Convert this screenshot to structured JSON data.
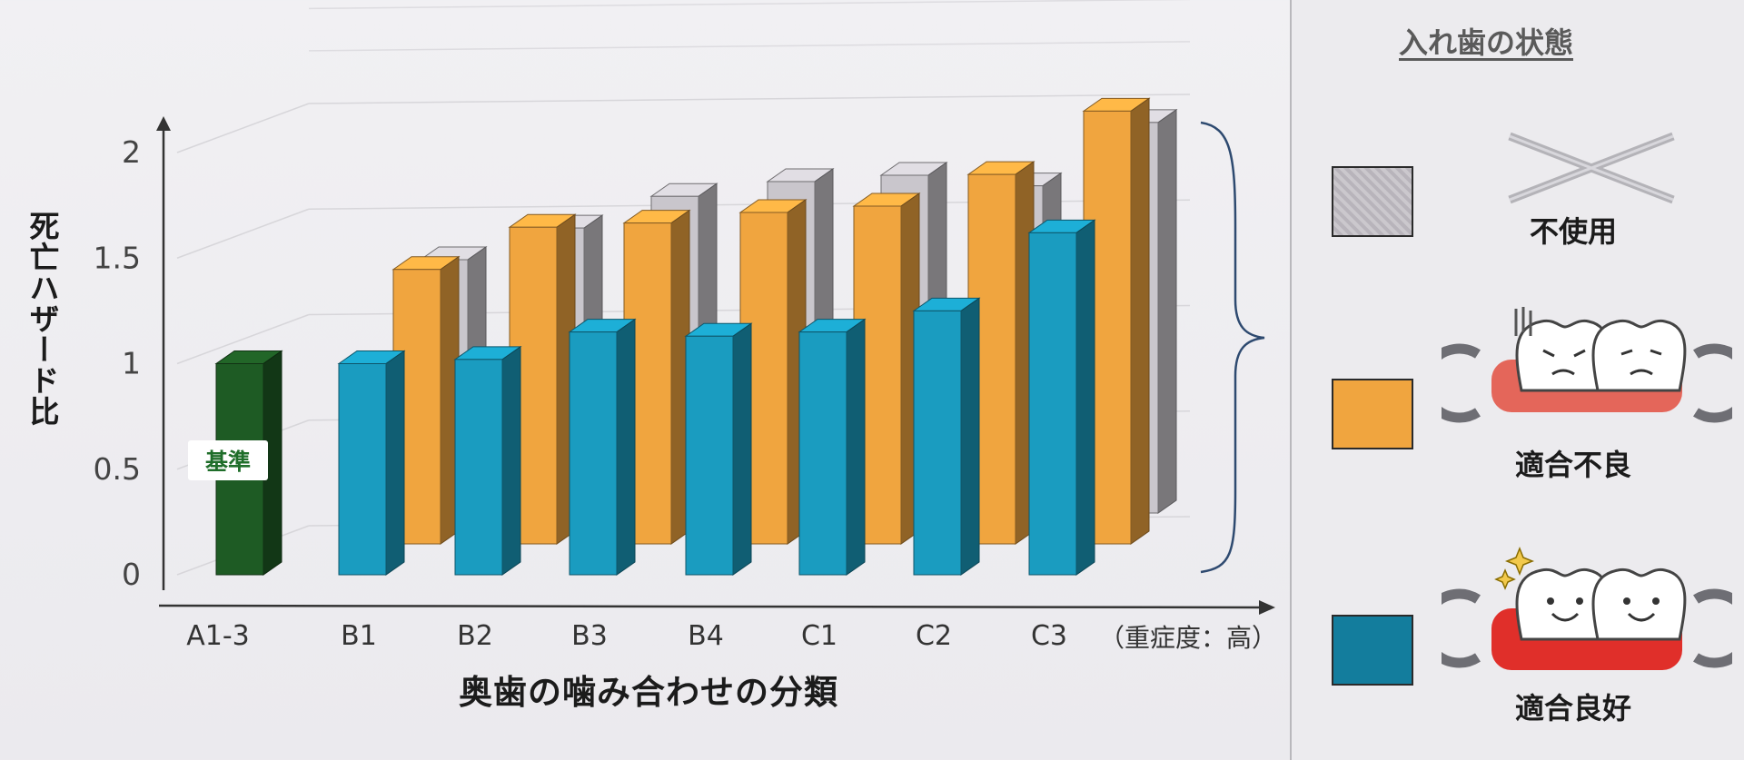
{
  "chart_data": {
    "type": "bar",
    "title": "",
    "xlabel": "奥歯の噛み合わせの分類",
    "ylabel": "死亡ハザード比",
    "ylim": [
      0,
      2
    ],
    "y_ticks": [
      "0",
      "0.5",
      "1",
      "1.5",
      "2"
    ],
    "categories": [
      "A1-3",
      "B1",
      "B2",
      "B3",
      "B4",
      "C1",
      "C2",
      "C3"
    ],
    "x_axis_suffix": "（重症度：高）",
    "baseline": {
      "category": "A1-3",
      "value": 1.0,
      "label": "基準",
      "color": "#1e5b24"
    },
    "series": [
      {
        "name": "適合良好",
        "color": "#1a9cc0",
        "values": [
          null,
          1.0,
          1.02,
          1.15,
          1.13,
          1.15,
          1.25,
          1.62
        ]
      },
      {
        "name": "適合不良",
        "color": "#f0a53f",
        "values": [
          null,
          1.3,
          1.5,
          1.52,
          1.57,
          1.6,
          1.75,
          2.05
        ]
      },
      {
        "name": "不使用",
        "color": "#c9c6cc",
        "values": [
          null,
          1.2,
          1.35,
          1.5,
          1.57,
          1.6,
          1.55,
          1.85
        ]
      }
    ],
    "grid": true,
    "legend_position": "right"
  },
  "legend": {
    "title": "入れ歯の状態",
    "items": [
      {
        "label": "不使用",
        "icon": "cross-out-icon"
      },
      {
        "label": "適合不良",
        "icon": "ill-fitting-denture-icon"
      },
      {
        "label": "適合良好",
        "icon": "well-fitting-denture-icon"
      }
    ]
  }
}
